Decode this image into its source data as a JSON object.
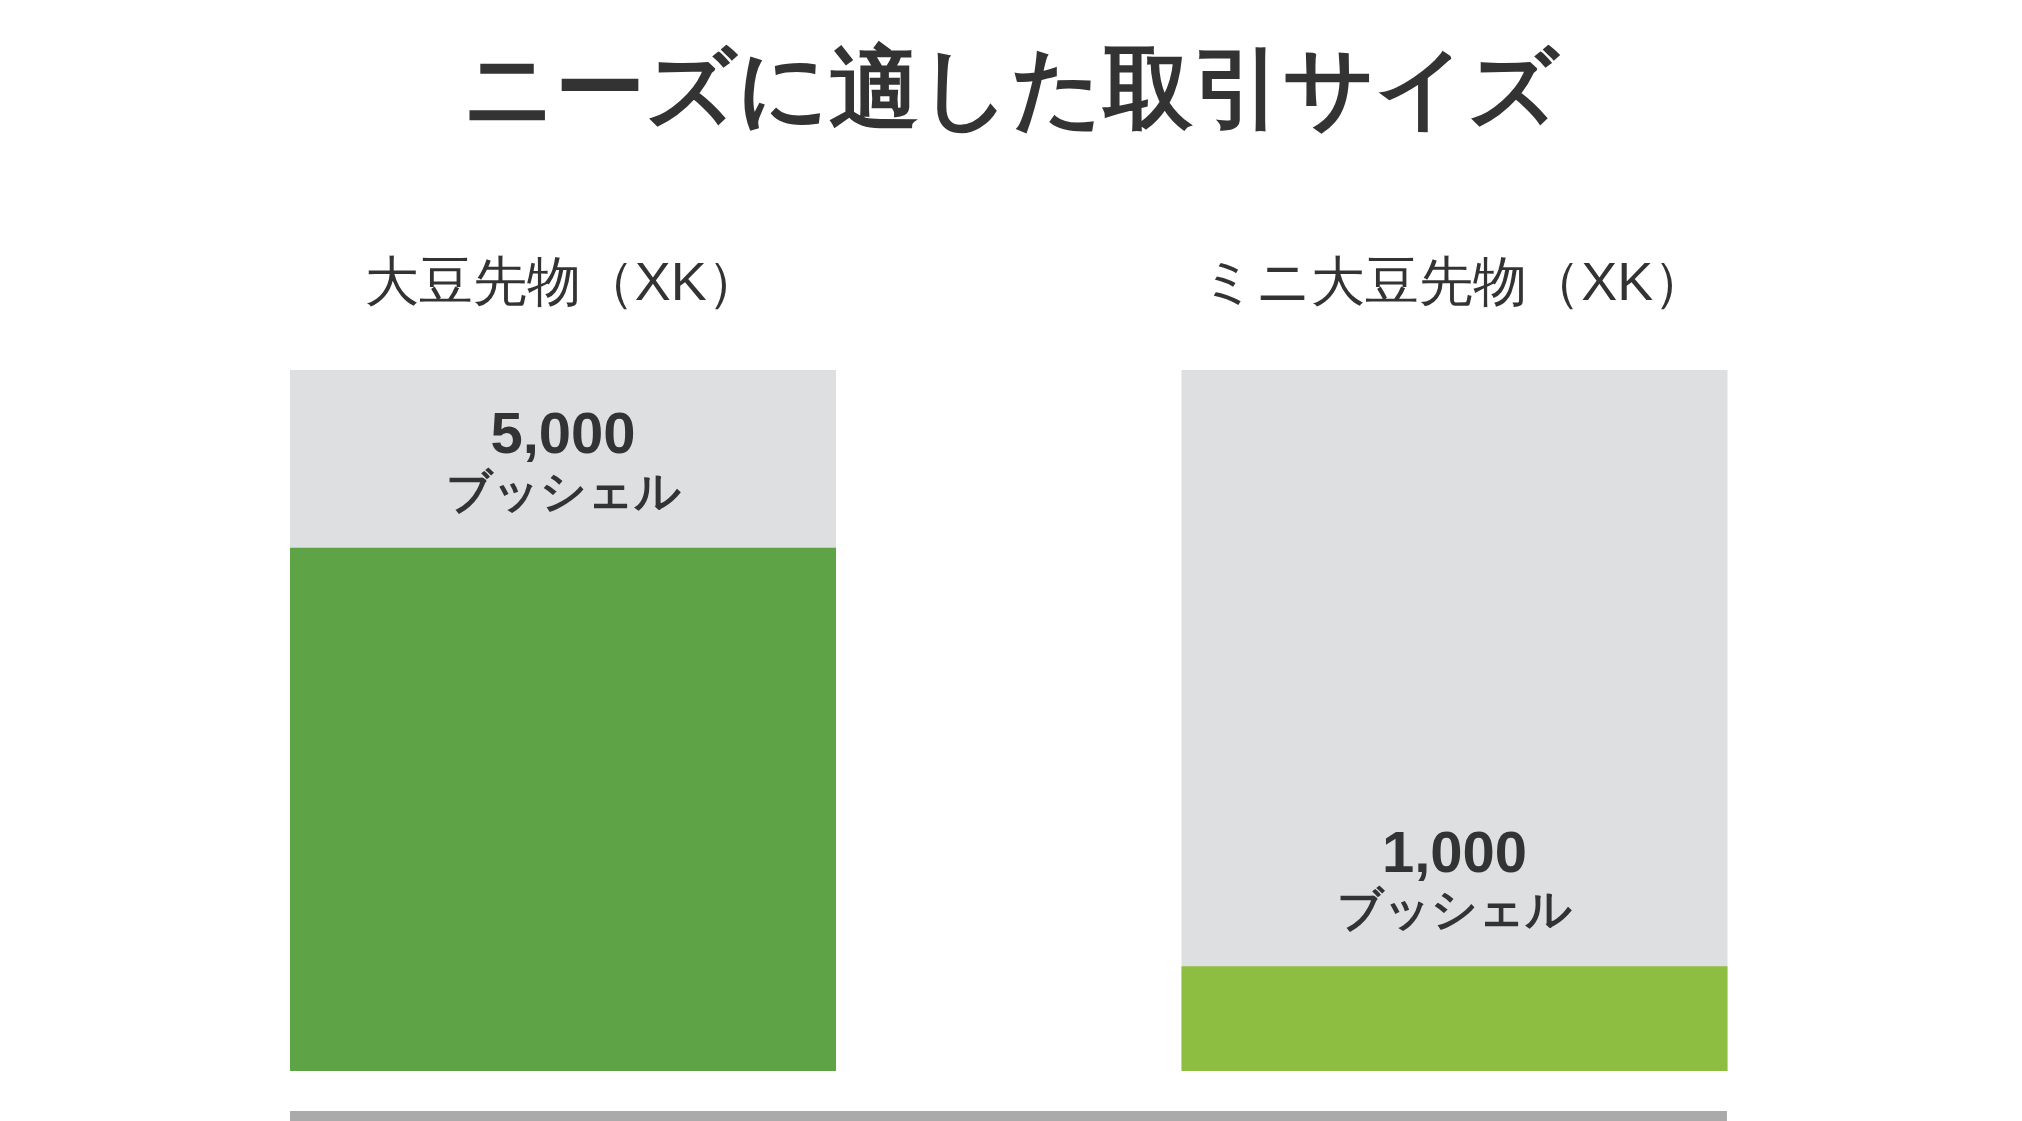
{
  "chart_data": {
    "type": "bar",
    "title": "ニーズに適した取引サイズ",
    "categories": [
      "大豆先物（XK）",
      "ミニ大豆先物（XK）"
    ],
    "values": [
      5000,
      1000
    ],
    "colors": [
      "#5ea345",
      "#8dbd41"
    ],
    "value_labels": [
      "5,000\nブッシェル",
      "1,000\nブッシェル"
    ],
    "ylim": [
      0,
      6700
    ],
    "tick_labels": "x"
  }
}
